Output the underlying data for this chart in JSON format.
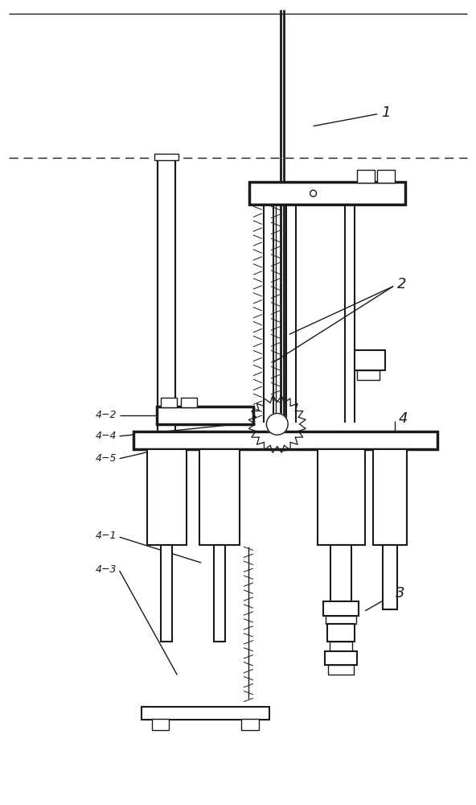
{
  "background_color": "#ffffff",
  "line_color": "#1a1a1a",
  "fig_width": 5.92,
  "fig_height": 10.0,
  "dpi": 100
}
